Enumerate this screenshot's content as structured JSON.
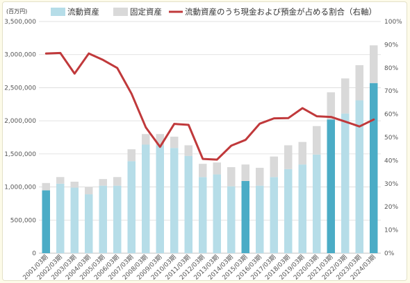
{
  "chart_data": {
    "type": "bar",
    "stacked": true,
    "y_unit_label": "(百万円)",
    "categories": [
      "2001/03期",
      "2002/03期",
      "2003/03期",
      "2004/03期",
      "2005/03期",
      "2006/03期",
      "2007/03期",
      "2008/03期",
      "2009/03期",
      "2010/03期",
      "2011/03期",
      "2012/03期",
      "2013/03期",
      "2014/03期",
      "2015/03期",
      "2016/03期",
      "2017/03期",
      "2018/03期",
      "2019/03期",
      "2020/03期",
      "2021/03期",
      "2022/03期",
      "2023/03期",
      "2024/03期"
    ],
    "highlighted_categories": [
      "2001/03期",
      "2015/03期",
      "2021/03期",
      "2024/03期"
    ],
    "series": [
      {
        "name": "流動資産",
        "type": "bar",
        "axis": "left",
        "color": "#b6dde8",
        "highlight_color": "#4bacc6",
        "values": [
          950000,
          1050000,
          990000,
          890000,
          1020000,
          1020000,
          1390000,
          1640000,
          1630000,
          1590000,
          1470000,
          1150000,
          1190000,
          1010000,
          1090000,
          1020000,
          1150000,
          1270000,
          1340000,
          1490000,
          2020000,
          2110000,
          2310000,
          2570000
        ]
      },
      {
        "name": "固定資産",
        "type": "bar",
        "axis": "left",
        "color": "#d9d9d9",
        "values": [
          110000,
          100000,
          90000,
          110000,
          100000,
          130000,
          180000,
          160000,
          170000,
          170000,
          160000,
          200000,
          180000,
          290000,
          250000,
          270000,
          310000,
          360000,
          340000,
          430000,
          410000,
          530000,
          530000,
          570000
        ]
      },
      {
        "name": "流動資産のうち現金および預金が占める割合（右軸）",
        "type": "line",
        "axis": "right",
        "color": "#c0393b",
        "values": [
          86.2,
          86.4,
          77.5,
          86.2,
          83.4,
          79.9,
          68.8,
          54.3,
          45.9,
          55.8,
          55.4,
          40.7,
          40.4,
          46.4,
          48.9,
          55.9,
          58.2,
          58.3,
          62.6,
          59.1,
          58.8,
          56.8,
          54.7,
          57.7
        ]
      }
    ],
    "y_left": {
      "min": 0,
      "max": 3500000,
      "step": 500000,
      "tick_labels": [
        "0",
        "500,000",
        "1,000,000",
        "1,500,000",
        "2,000,000",
        "2,500,000",
        "3,000,000",
        "3,500,000"
      ]
    },
    "y_right": {
      "min": 0,
      "max": 100,
      "step": 10,
      "tick_labels": [
        "0%",
        "10%",
        "20%",
        "30%",
        "40%",
        "50%",
        "60%",
        "70%",
        "80%",
        "90%",
        "100%"
      ]
    },
    "grid": true,
    "legend_position": "top"
  }
}
